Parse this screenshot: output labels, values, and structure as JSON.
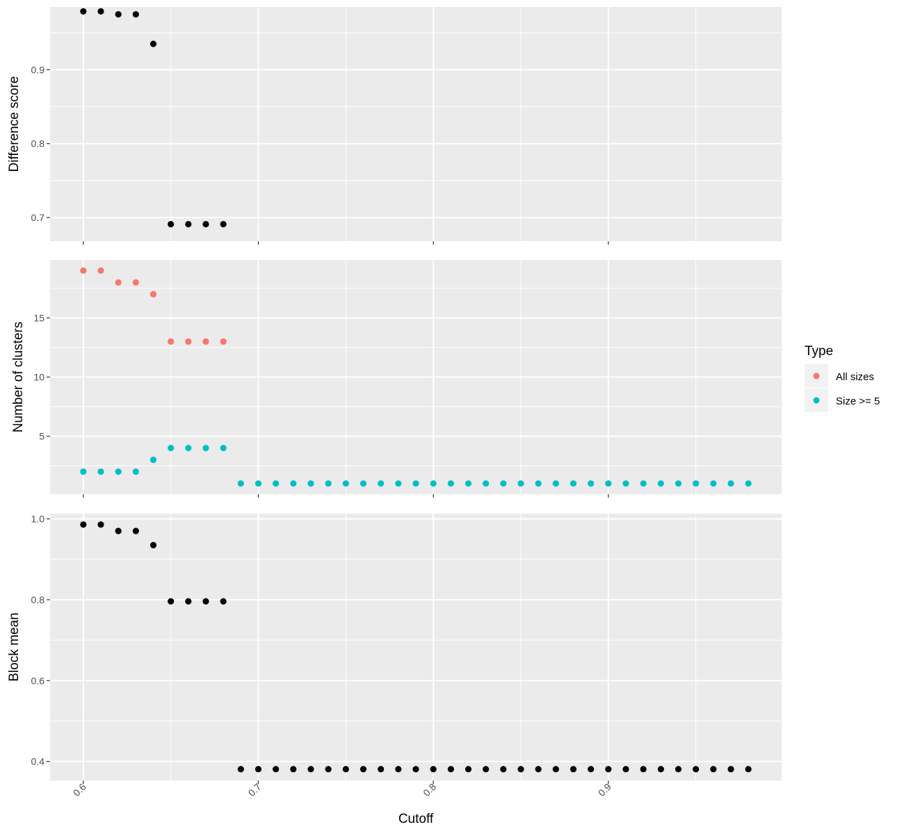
{
  "chart_data": [
    {
      "type": "scatter",
      "ylabel": "Difference score",
      "ylim": [
        0.668,
        0.985
      ],
      "y_ticks": [
        0.7,
        0.8,
        0.9
      ],
      "y_tick_labels": [
        "0.7",
        "0.8",
        "0.9"
      ],
      "series": [
        {
          "color": "#000000",
          "x": [
            0.6,
            0.61,
            0.62,
            0.63,
            0.64,
            0.65,
            0.66,
            0.67,
            0.68
          ],
          "y": [
            0.979,
            0.979,
            0.975,
            0.975,
            0.935,
            0.691,
            0.691,
            0.691,
            0.691
          ]
        }
      ]
    },
    {
      "type": "scatter",
      "ylabel": "Number of clusters",
      "ylim": [
        0.1,
        19.9
      ],
      "y_ticks": [
        5,
        10,
        15
      ],
      "y_tick_labels": [
        "5",
        "10",
        "15"
      ],
      "series": [
        {
          "name": "All sizes",
          "color": "#F8766D",
          "x": [
            0.6,
            0.61,
            0.62,
            0.63,
            0.64,
            0.65,
            0.66,
            0.67,
            0.68
          ],
          "y": [
            19,
            19,
            18,
            18,
            17,
            13,
            13,
            13,
            13
          ]
        },
        {
          "name": "Size >= 5",
          "color": "#00BFC4",
          "x": [
            0.6,
            0.61,
            0.62,
            0.63,
            0.64,
            0.65,
            0.66,
            0.67,
            0.68,
            0.69,
            0.7,
            0.71,
            0.72,
            0.73,
            0.74,
            0.75,
            0.76,
            0.77,
            0.78,
            0.79,
            0.8,
            0.81,
            0.82,
            0.83,
            0.84,
            0.85,
            0.86,
            0.87,
            0.88,
            0.89,
            0.9,
            0.91,
            0.92,
            0.93,
            0.94,
            0.95,
            0.96,
            0.97,
            0.98
          ],
          "y": [
            2,
            2,
            2,
            2,
            3,
            4,
            4,
            4,
            4,
            1,
            1,
            1,
            1,
            1,
            1,
            1,
            1,
            1,
            1,
            1,
            1,
            1,
            1,
            1,
            1,
            1,
            1,
            1,
            1,
            1,
            1,
            1,
            1,
            1,
            1,
            1,
            1,
            1,
            1
          ]
        }
      ]
    },
    {
      "type": "scatter",
      "ylabel": "Block mean",
      "ylim": [
        0.353,
        1.013
      ],
      "y_ticks": [
        0.4,
        0.6,
        0.8,
        1.0
      ],
      "y_tick_labels": [
        "0.4",
        "0.6",
        "0.8",
        "1.0"
      ],
      "series": [
        {
          "color": "#000000",
          "x": [
            0.6,
            0.61,
            0.62,
            0.63,
            0.64,
            0.65,
            0.66,
            0.67,
            0.68,
            0.69,
            0.7,
            0.71,
            0.72,
            0.73,
            0.74,
            0.75,
            0.76,
            0.77,
            0.78,
            0.79,
            0.8,
            0.81,
            0.82,
            0.83,
            0.84,
            0.85,
            0.86,
            0.87,
            0.88,
            0.89,
            0.9,
            0.91,
            0.92,
            0.93,
            0.94,
            0.95,
            0.96,
            0.97,
            0.98
          ],
          "y": [
            0.986,
            0.986,
            0.97,
            0.97,
            0.935,
            0.796,
            0.796,
            0.796,
            0.796,
            0.381,
            0.381,
            0.381,
            0.381,
            0.381,
            0.381,
            0.381,
            0.381,
            0.381,
            0.381,
            0.381,
            0.381,
            0.381,
            0.381,
            0.381,
            0.381,
            0.381,
            0.381,
            0.381,
            0.381,
            0.381,
            0.381,
            0.381,
            0.381,
            0.381,
            0.381,
            0.381,
            0.381,
            0.381,
            0.381
          ]
        }
      ]
    }
  ],
  "x_axis": {
    "label": "Cutoff",
    "xlim": [
      0.581,
      0.999
    ],
    "ticks": [
      0.6,
      0.7,
      0.8,
      0.9
    ],
    "tick_labels": [
      "0.6",
      "0.7",
      "0.8",
      "0.9"
    ]
  },
  "legend": {
    "title": "Type",
    "placement": "right",
    "items": [
      {
        "label": "All sizes",
        "color": "#F8766D"
      },
      {
        "label": "Size >= 5",
        "color": "#00BFC4"
      }
    ]
  },
  "colors": {
    "panel_background": "#EBEBEB",
    "grid_major": "#FFFFFF",
    "tick": "#333333"
  }
}
